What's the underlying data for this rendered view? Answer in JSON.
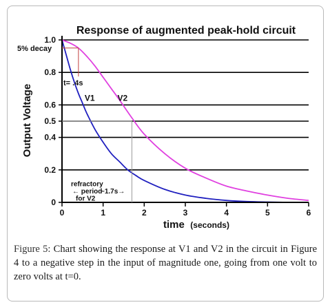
{
  "figure": {
    "caption_label": "Figure 5:",
    "caption_text": "Chart showing the response at V1 and V2 in the circuit in Figure 4 to a negative step in the input of magnitude one, going from one volt to zero volts at t=0."
  },
  "chart_data": {
    "type": "line",
    "title": "Response of augmented peak-hold circuit",
    "xlabel_main": "time",
    "xlabel_unit": "(seconds)",
    "ylabel": "Output Voltage",
    "xlim": [
      0,
      6
    ],
    "ylim": [
      0,
      1.0
    ],
    "xticks": [
      0,
      1,
      2,
      3,
      4,
      5,
      6
    ],
    "xtick_labels": [
      "0",
      "1",
      "2",
      "3",
      "4",
      "5",
      "6"
    ],
    "yticks": [
      0,
      0.2,
      0.4,
      0.5,
      0.6,
      0.8,
      1.0
    ],
    "ytick_labels": [
      "0",
      "0.2",
      "0.4",
      "0.5",
      "0.6",
      "0.8",
      "1.0"
    ],
    "grid": "horizontal",
    "series": [
      {
        "name": "V1",
        "color": "#1f1fbf",
        "x": [
          0,
          0.1,
          0.2,
          0.3,
          0.4,
          0.5,
          0.6,
          0.8,
          1.0,
          1.2,
          1.4,
          1.6,
          1.8,
          2.0,
          2.5,
          3.0,
          3.5,
          4.0,
          4.5,
          5.0,
          5.5,
          6.0
        ],
        "y": [
          1.0,
          0.91,
          0.82,
          0.74,
          0.67,
          0.61,
          0.55,
          0.45,
          0.37,
          0.3,
          0.25,
          0.2,
          0.165,
          0.135,
          0.08,
          0.045,
          0.025,
          0.012,
          0.005,
          0.002,
          0.0,
          0.0
        ]
      },
      {
        "name": "V2",
        "color": "#e040e0",
        "x": [
          0,
          0.2,
          0.4,
          0.6,
          0.8,
          1.0,
          1.2,
          1.4,
          1.7,
          2.0,
          2.5,
          3.0,
          3.5,
          4.0,
          4.5,
          5.0,
          5.5,
          6.0
        ],
        "y": [
          1.0,
          0.98,
          0.95,
          0.9,
          0.84,
          0.77,
          0.7,
          0.63,
          0.52,
          0.42,
          0.3,
          0.21,
          0.15,
          0.1,
          0.07,
          0.045,
          0.025,
          0.012
        ]
      }
    ],
    "annotations": {
      "decay_label": "5% decay",
      "decay_level": 0.95,
      "t_label": "t= .4s",
      "t_value": 0.4,
      "refractory_line1": "refractory",
      "refractory_line2": "period",
      "refractory_line3": "for V2",
      "refractory_span": "~1.7s",
      "refractory_t": 1.7,
      "refractory_level": 0.5
    }
  }
}
